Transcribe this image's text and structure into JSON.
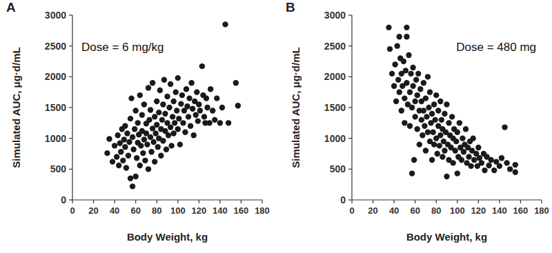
{
  "chart_data": [
    {
      "type": "scatter",
      "title": "A",
      "annotation": "Dose = 6 mg/kg",
      "x_label": "Body Weight, kg",
      "y_label": "Simulated AUC, μg·d/mL",
      "xlim": [
        0,
        180
      ],
      "xticks": [
        0,
        20,
        40,
        60,
        80,
        100,
        120,
        140,
        160,
        180
      ],
      "ylim": [
        0,
        3000
      ],
      "yticks": [
        0,
        500,
        1000,
        1500,
        2000,
        2500,
        3000
      ],
      "color": "#1a1a1a",
      "marker": "circle",
      "x": [
        33,
        35,
        38,
        40,
        42,
        43,
        44,
        45,
        46,
        47,
        48,
        49,
        50,
        50,
        51,
        52,
        53,
        54,
        55,
        55,
        56,
        57,
        57,
        58,
        59,
        60,
        60,
        61,
        62,
        62,
        63,
        64,
        64,
        65,
        66,
        66,
        67,
        68,
        68,
        69,
        70,
        70,
        71,
        72,
        72,
        73,
        74,
        74,
        75,
        76,
        76,
        77,
        78,
        78,
        79,
        80,
        80,
        81,
        82,
        82,
        83,
        84,
        84,
        85,
        86,
        86,
        87,
        88,
        88,
        89,
        90,
        90,
        91,
        92,
        93,
        93,
        94,
        95,
        96,
        96,
        97,
        98,
        99,
        100,
        100,
        101,
        102,
        103,
        104,
        105,
        106,
        107,
        108,
        109,
        110,
        111,
        112,
        113,
        114,
        115,
        116,
        117,
        118,
        119,
        120,
        121,
        123,
        124,
        125,
        126,
        127,
        128,
        130,
        131,
        133,
        135,
        137,
        140,
        142,
        145,
        148,
        155,
        157
      ],
      "values": [
        760,
        990,
        620,
        880,
        700,
        1050,
        560,
        920,
        780,
        1150,
        640,
        980,
        860,
        1200,
        520,
        1080,
        720,
        940,
        1320,
        350,
        1650,
        220,
        1020,
        820,
        1150,
        380,
        1450,
        680,
        930,
        1250,
        1060,
        560,
        1700,
        880,
        1380,
        1120,
        760,
        980,
        1550,
        640,
        1240,
        1080,
        900,
        1820,
        500,
        1300,
        1020,
        1460,
        780,
        1160,
        1900,
        940,
        1350,
        620,
        1080,
        1600,
        1220,
        860,
        1420,
        1000,
        1780,
        1150,
        720,
        1300,
        1550,
        960,
        1950,
        1120,
        1400,
        820,
        1250,
        1680,
        1050,
        1500,
        1880,
        1180,
        880,
        1350,
        1600,
        1080,
        1250,
        1750,
        1450,
        1150,
        1980,
        1320,
        900,
        1560,
        1700,
        1250,
        1450,
        1100,
        1800,
        1520,
        1350,
        1650,
        1200,
        1900,
        1480,
        1050,
        1600,
        1380,
        1750,
        1280,
        1550,
        1450,
        2170,
        1700,
        1350,
        1250,
        1650,
        1500,
        1250,
        1800,
        1450,
        1300,
        1650,
        1250,
        1500,
        2850,
        1250,
        1900,
        1530
      ]
    },
    {
      "type": "scatter",
      "title": "B",
      "annotation": "Dose = 480 mg",
      "x_label": "Body Weight, kg",
      "y_label": "Simulated AUC, μg·d/mL",
      "xlim": [
        0,
        180
      ],
      "xticks": [
        0,
        20,
        40,
        60,
        80,
        100,
        120,
        140,
        160,
        180
      ],
      "ylim": [
        0,
        3000
      ],
      "yticks": [
        0,
        500,
        1000,
        1500,
        2000,
        2500,
        3000
      ],
      "color": "#1a1a1a",
      "marker": "circle",
      "x": [
        35,
        36,
        38,
        40,
        41,
        42,
        43,
        44,
        45,
        45,
        46,
        47,
        47,
        48,
        49,
        50,
        50,
        51,
        52,
        52,
        52,
        53,
        54,
        55,
        55,
        56,
        57,
        57,
        58,
        58,
        59,
        60,
        60,
        61,
        62,
        62,
        63,
        64,
        64,
        65,
        66,
        66,
        67,
        68,
        68,
        69,
        70,
        70,
        71,
        72,
        72,
        73,
        74,
        74,
        75,
        76,
        76,
        77,
        78,
        78,
        79,
        80,
        80,
        81,
        82,
        82,
        83,
        84,
        84,
        85,
        86,
        86,
        87,
        88,
        88,
        89,
        90,
        90,
        91,
        92,
        92,
        93,
        94,
        95,
        96,
        96,
        97,
        98,
        99,
        100,
        100,
        101,
        102,
        103,
        104,
        105,
        106,
        107,
        108,
        109,
        110,
        111,
        112,
        113,
        114,
        115,
        116,
        118,
        119,
        120,
        121,
        123,
        125,
        126,
        128,
        130,
        132,
        135,
        137,
        140,
        142,
        145,
        147,
        150,
        155,
        155
      ],
      "values": [
        2800,
        2450,
        2050,
        1850,
        2200,
        1600,
        2500,
        1950,
        2650,
        1750,
        2300,
        1450,
        2050,
        1850,
        2250,
        1650,
        1250,
        2100,
        2800,
        2650,
        1900,
        1550,
        2350,
        1750,
        1200,
        2050,
        430,
        1500,
        1850,
        2150,
        650,
        1600,
        1350,
        1950,
        1700,
        1150,
        2050,
        1450,
        900,
        1800,
        1300,
        1600,
        1050,
        1900,
        1450,
        1200,
        1650,
        800,
        1350,
        2000,
        1100,
        1500,
        950,
        1750,
        1250,
        1400,
        650,
        1100,
        1550,
        900,
        1300,
        1000,
        1700,
        750,
        1200,
        1450,
        880,
        1050,
        1600,
        1300,
        700,
        1150,
        950,
        1400,
        800,
        1100,
        380,
        1550,
        900,
        1250,
        650,
        1050,
        850,
        1350,
        1000,
        600,
        1150,
        800,
        950,
        430,
        1100,
        700,
        1250,
        850,
        650,
        1000,
        780,
        900,
        1150,
        600,
        850,
        700,
        950,
        550,
        800,
        1000,
        650,
        750,
        550,
        850,
        680,
        600,
        750,
        480,
        700,
        560,
        650,
        480,
        620,
        550,
        680,
        1180,
        600,
        500,
        450,
        570
      ]
    }
  ]
}
